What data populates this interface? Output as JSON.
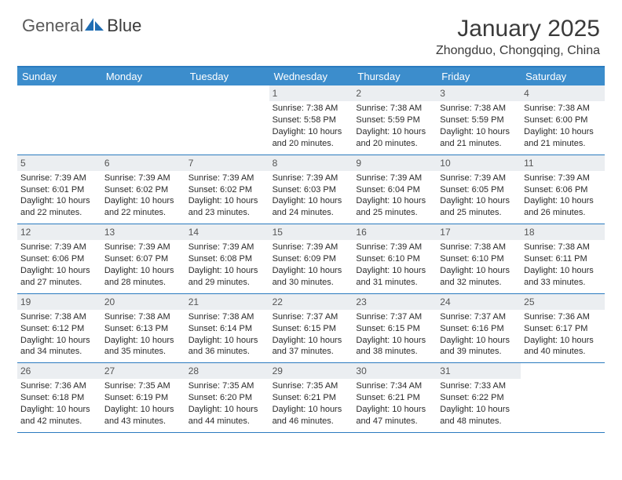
{
  "logo": {
    "text1": "General",
    "text2": "Blue"
  },
  "title": "January 2025",
  "location": "Zhongduo, Chongqing, China",
  "colors": {
    "header_bg": "#3c8dcc",
    "border": "#2b7bbf",
    "daynum_bg": "#ebeef1",
    "text": "#2a2a2a",
    "logo_accent": "#1f6db3"
  },
  "weekdays": [
    "Sunday",
    "Monday",
    "Tuesday",
    "Wednesday",
    "Thursday",
    "Friday",
    "Saturday"
  ],
  "weeks": [
    [
      {
        "empty": true
      },
      {
        "empty": true
      },
      {
        "empty": true
      },
      {
        "num": "1",
        "sunrise": "7:38 AM",
        "sunset": "5:58 PM",
        "daylight": "10 hours and 20 minutes."
      },
      {
        "num": "2",
        "sunrise": "7:38 AM",
        "sunset": "5:59 PM",
        "daylight": "10 hours and 20 minutes."
      },
      {
        "num": "3",
        "sunrise": "7:38 AM",
        "sunset": "5:59 PM",
        "daylight": "10 hours and 21 minutes."
      },
      {
        "num": "4",
        "sunrise": "7:38 AM",
        "sunset": "6:00 PM",
        "daylight": "10 hours and 21 minutes."
      }
    ],
    [
      {
        "num": "5",
        "sunrise": "7:39 AM",
        "sunset": "6:01 PM",
        "daylight": "10 hours and 22 minutes."
      },
      {
        "num": "6",
        "sunrise": "7:39 AM",
        "sunset": "6:02 PM",
        "daylight": "10 hours and 22 minutes."
      },
      {
        "num": "7",
        "sunrise": "7:39 AM",
        "sunset": "6:02 PM",
        "daylight": "10 hours and 23 minutes."
      },
      {
        "num": "8",
        "sunrise": "7:39 AM",
        "sunset": "6:03 PM",
        "daylight": "10 hours and 24 minutes."
      },
      {
        "num": "9",
        "sunrise": "7:39 AM",
        "sunset": "6:04 PM",
        "daylight": "10 hours and 25 minutes."
      },
      {
        "num": "10",
        "sunrise": "7:39 AM",
        "sunset": "6:05 PM",
        "daylight": "10 hours and 25 minutes."
      },
      {
        "num": "11",
        "sunrise": "7:39 AM",
        "sunset": "6:06 PM",
        "daylight": "10 hours and 26 minutes."
      }
    ],
    [
      {
        "num": "12",
        "sunrise": "7:39 AM",
        "sunset": "6:06 PM",
        "daylight": "10 hours and 27 minutes."
      },
      {
        "num": "13",
        "sunrise": "7:39 AM",
        "sunset": "6:07 PM",
        "daylight": "10 hours and 28 minutes."
      },
      {
        "num": "14",
        "sunrise": "7:39 AM",
        "sunset": "6:08 PM",
        "daylight": "10 hours and 29 minutes."
      },
      {
        "num": "15",
        "sunrise": "7:39 AM",
        "sunset": "6:09 PM",
        "daylight": "10 hours and 30 minutes."
      },
      {
        "num": "16",
        "sunrise": "7:39 AM",
        "sunset": "6:10 PM",
        "daylight": "10 hours and 31 minutes."
      },
      {
        "num": "17",
        "sunrise": "7:38 AM",
        "sunset": "6:10 PM",
        "daylight": "10 hours and 32 minutes."
      },
      {
        "num": "18",
        "sunrise": "7:38 AM",
        "sunset": "6:11 PM",
        "daylight": "10 hours and 33 minutes."
      }
    ],
    [
      {
        "num": "19",
        "sunrise": "7:38 AM",
        "sunset": "6:12 PM",
        "daylight": "10 hours and 34 minutes."
      },
      {
        "num": "20",
        "sunrise": "7:38 AM",
        "sunset": "6:13 PM",
        "daylight": "10 hours and 35 minutes."
      },
      {
        "num": "21",
        "sunrise": "7:38 AM",
        "sunset": "6:14 PM",
        "daylight": "10 hours and 36 minutes."
      },
      {
        "num": "22",
        "sunrise": "7:37 AM",
        "sunset": "6:15 PM",
        "daylight": "10 hours and 37 minutes."
      },
      {
        "num": "23",
        "sunrise": "7:37 AM",
        "sunset": "6:15 PM",
        "daylight": "10 hours and 38 minutes."
      },
      {
        "num": "24",
        "sunrise": "7:37 AM",
        "sunset": "6:16 PM",
        "daylight": "10 hours and 39 minutes."
      },
      {
        "num": "25",
        "sunrise": "7:36 AM",
        "sunset": "6:17 PM",
        "daylight": "10 hours and 40 minutes."
      }
    ],
    [
      {
        "num": "26",
        "sunrise": "7:36 AM",
        "sunset": "6:18 PM",
        "daylight": "10 hours and 42 minutes."
      },
      {
        "num": "27",
        "sunrise": "7:35 AM",
        "sunset": "6:19 PM",
        "daylight": "10 hours and 43 minutes."
      },
      {
        "num": "28",
        "sunrise": "7:35 AM",
        "sunset": "6:20 PM",
        "daylight": "10 hours and 44 minutes."
      },
      {
        "num": "29",
        "sunrise": "7:35 AM",
        "sunset": "6:21 PM",
        "daylight": "10 hours and 46 minutes."
      },
      {
        "num": "30",
        "sunrise": "7:34 AM",
        "sunset": "6:21 PM",
        "daylight": "10 hours and 47 minutes."
      },
      {
        "num": "31",
        "sunrise": "7:33 AM",
        "sunset": "6:22 PM",
        "daylight": "10 hours and 48 minutes."
      },
      {
        "empty": true
      }
    ]
  ],
  "labels": {
    "sunrise_prefix": "Sunrise: ",
    "sunset_prefix": "Sunset: ",
    "daylight_prefix": "Daylight: "
  }
}
